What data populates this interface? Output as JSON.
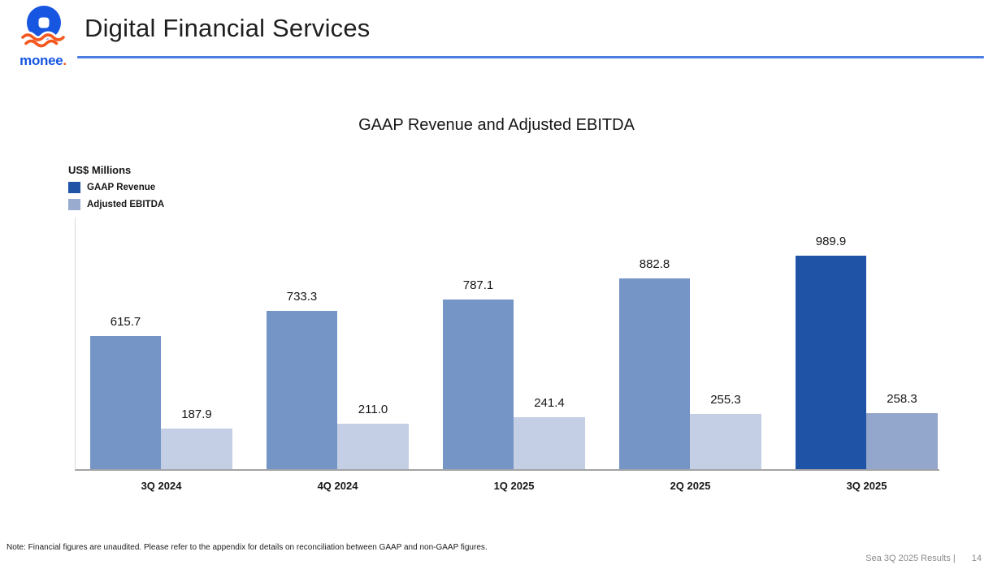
{
  "header": {
    "logo_text": "monee",
    "logo_dot": ".",
    "title": "Digital Financial Services",
    "logo_colors": {
      "coin_blue": "#1656e0",
      "wave_orange": "#f4581f"
    }
  },
  "chart": {
    "title": "GAAP Revenue and Adjusted EBITDA",
    "units_label": "US$ Millions",
    "legend": [
      {
        "label": "GAAP Revenue",
        "color": "#1f53a5"
      },
      {
        "label": "Adjusted EBITDA",
        "color": "#9aabd0"
      }
    ]
  },
  "chart_data": {
    "type": "bar",
    "title": "GAAP Revenue and Adjusted EBITDA",
    "units": "US$ Millions",
    "categories": [
      "3Q 2024",
      "4Q 2024",
      "1Q 2025",
      "2Q 2025",
      "3Q 2025"
    ],
    "series": [
      {
        "name": "GAAP Revenue",
        "values": [
          615.7,
          733.3,
          787.1,
          882.8,
          989.9
        ],
        "labels": [
          "615.7",
          "733.3",
          "787.1",
          "882.8",
          "989.9"
        ]
      },
      {
        "name": "Adjusted EBITDA",
        "values": [
          187.9,
          211.0,
          241.4,
          255.3,
          258.3
        ],
        "labels": [
          "187.9",
          "211.0",
          "241.4",
          "255.3",
          "258.3"
        ]
      }
    ],
    "highlight_category": "3Q 2025",
    "colors": {
      "gaap_revenue_past": "#7495c6",
      "gaap_revenue_current": "#1f53a5",
      "adjusted_ebitda_past": "#c4cee4",
      "adjusted_ebitda_current": "#93a6cb"
    },
    "ylim": [
      0,
      1100
    ],
    "grid": false,
    "legend_position": "top-left",
    "value_labels_shown": true
  },
  "footer": {
    "note": "Note: Financial figures are unaudited. Please refer to the appendix for details on reconciliation between GAAP and non-GAAP figures.",
    "source": "Sea 3Q 2025 Results |",
    "page_number": "14"
  }
}
